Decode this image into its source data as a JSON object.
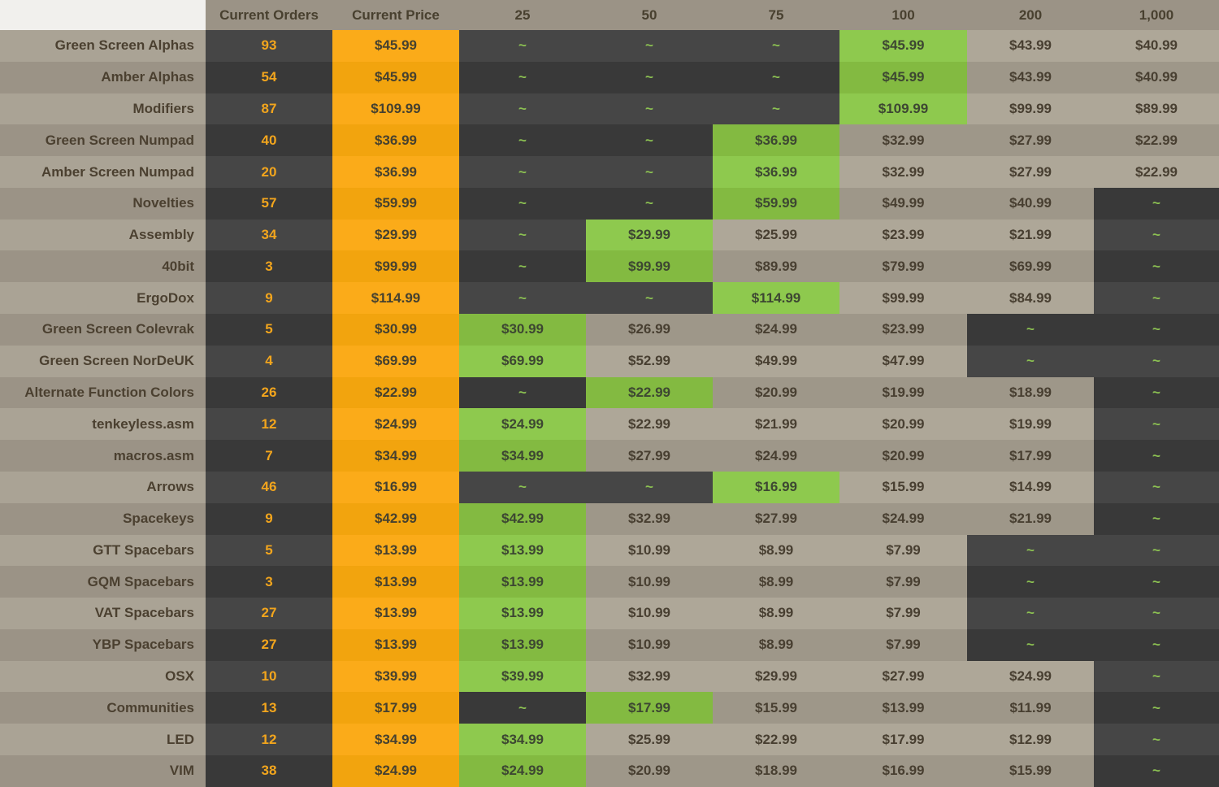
{
  "chart_data": {
    "type": "table",
    "corner_label": "",
    "columns": [
      "Current Orders",
      "Current Price",
      "25",
      "50",
      "75",
      "100",
      "200",
      "1,000"
    ],
    "tier_columns": [
      "25",
      "50",
      "75",
      "100",
      "200",
      "1,000"
    ],
    "unavailable_marker": "~",
    "rows": [
      {
        "label": "Green Screen Alphas",
        "orders": "93",
        "price": "$45.99",
        "tiers": [
          null,
          null,
          null,
          "$45.99",
          "$43.99",
          "$40.99"
        ],
        "highlight_tier": 3
      },
      {
        "label": "Amber Alphas",
        "orders": "54",
        "price": "$45.99",
        "tiers": [
          null,
          null,
          null,
          "$45.99",
          "$43.99",
          "$40.99"
        ],
        "highlight_tier": 3
      },
      {
        "label": "Modifiers",
        "orders": "87",
        "price": "$109.99",
        "tiers": [
          null,
          null,
          null,
          "$109.99",
          "$99.99",
          "$89.99"
        ],
        "highlight_tier": 3
      },
      {
        "label": "Green Screen Numpad",
        "orders": "40",
        "price": "$36.99",
        "tiers": [
          null,
          null,
          "$36.99",
          "$32.99",
          "$27.99",
          "$22.99"
        ],
        "highlight_tier": 2
      },
      {
        "label": "Amber Screen Numpad",
        "orders": "20",
        "price": "$36.99",
        "tiers": [
          null,
          null,
          "$36.99",
          "$32.99",
          "$27.99",
          "$22.99"
        ],
        "highlight_tier": 2
      },
      {
        "label": "Novelties",
        "orders": "57",
        "price": "$59.99",
        "tiers": [
          null,
          null,
          "$59.99",
          "$49.99",
          "$40.99",
          null
        ],
        "highlight_tier": 2
      },
      {
        "label": "Assembly",
        "orders": "34",
        "price": "$29.99",
        "tiers": [
          null,
          "$29.99",
          "$25.99",
          "$23.99",
          "$21.99",
          null
        ],
        "highlight_tier": 1
      },
      {
        "label": "40bit",
        "orders": "3",
        "price": "$99.99",
        "tiers": [
          null,
          "$99.99",
          "$89.99",
          "$79.99",
          "$69.99",
          null
        ],
        "highlight_tier": 1
      },
      {
        "label": "ErgoDox",
        "orders": "9",
        "price": "$114.99",
        "tiers": [
          null,
          null,
          "$114.99",
          "$99.99",
          "$84.99",
          null
        ],
        "highlight_tier": 2
      },
      {
        "label": "Green Screen Colevrak",
        "orders": "5",
        "price": "$30.99",
        "tiers": [
          "$30.99",
          "$26.99",
          "$24.99",
          "$23.99",
          null,
          null
        ],
        "highlight_tier": 0
      },
      {
        "label": "Green Screen NorDeUK",
        "orders": "4",
        "price": "$69.99",
        "tiers": [
          "$69.99",
          "$52.99",
          "$49.99",
          "$47.99",
          null,
          null
        ],
        "highlight_tier": 0
      },
      {
        "label": "Alternate Function Colors",
        "orders": "26",
        "price": "$22.99",
        "tiers": [
          null,
          "$22.99",
          "$20.99",
          "$19.99",
          "$18.99",
          null
        ],
        "highlight_tier": 1
      },
      {
        "label": "tenkeyless.asm",
        "orders": "12",
        "price": "$24.99",
        "tiers": [
          "$24.99",
          "$22.99",
          "$21.99",
          "$20.99",
          "$19.99",
          null
        ],
        "highlight_tier": 0
      },
      {
        "label": "macros.asm",
        "orders": "7",
        "price": "$34.99",
        "tiers": [
          "$34.99",
          "$27.99",
          "$24.99",
          "$20.99",
          "$17.99",
          null
        ],
        "highlight_tier": 0
      },
      {
        "label": "Arrows",
        "orders": "46",
        "price": "$16.99",
        "tiers": [
          null,
          null,
          "$16.99",
          "$15.99",
          "$14.99",
          null
        ],
        "highlight_tier": 2
      },
      {
        "label": "Spacekeys",
        "orders": "9",
        "price": "$42.99",
        "tiers": [
          "$42.99",
          "$32.99",
          "$27.99",
          "$24.99",
          "$21.99",
          null
        ],
        "highlight_tier": 0
      },
      {
        "label": "GTT Spacebars",
        "orders": "5",
        "price": "$13.99",
        "tiers": [
          "$13.99",
          "$10.99",
          "$8.99",
          "$7.99",
          null,
          null
        ],
        "highlight_tier": 0
      },
      {
        "label": "GQM Spacebars",
        "orders": "3",
        "price": "$13.99",
        "tiers": [
          "$13.99",
          "$10.99",
          "$8.99",
          "$7.99",
          null,
          null
        ],
        "highlight_tier": 0
      },
      {
        "label": "VAT Spacebars",
        "orders": "27",
        "price": "$13.99",
        "tiers": [
          "$13.99",
          "$10.99",
          "$8.99",
          "$7.99",
          null,
          null
        ],
        "highlight_tier": 0
      },
      {
        "label": "YBP Spacebars",
        "orders": "27",
        "price": "$13.99",
        "tiers": [
          "$13.99",
          "$10.99",
          "$8.99",
          "$7.99",
          null,
          null
        ],
        "highlight_tier": 0
      },
      {
        "label": "OSX",
        "orders": "10",
        "price": "$39.99",
        "tiers": [
          "$39.99",
          "$32.99",
          "$29.99",
          "$27.99",
          "$24.99",
          null
        ],
        "highlight_tier": 0
      },
      {
        "label": "Communities",
        "orders": "13",
        "price": "$17.99",
        "tiers": [
          null,
          "$17.99",
          "$15.99",
          "$13.99",
          "$11.99",
          null
        ],
        "highlight_tier": 1
      },
      {
        "label": "LED",
        "orders": "12",
        "price": "$34.99",
        "tiers": [
          "$34.99",
          "$25.99",
          "$22.99",
          "$17.99",
          "$12.99",
          null
        ],
        "highlight_tier": 0
      },
      {
        "label": "VIM",
        "orders": "38",
        "price": "$24.99",
        "tiers": [
          "$24.99",
          "$20.99",
          "$18.99",
          "$16.99",
          "$15.99",
          null
        ],
        "highlight_tier": 0
      }
    ]
  },
  "colors": {
    "corner_bg": "#f1f0ed",
    "header_bg": "#9b9386",
    "header_text": "#48402f",
    "label_bg_odd": "#aaa395",
    "label_bg_even": "#9b9386",
    "label_text": "#4b4030",
    "dark_bg_odd": "#464646",
    "dark_bg_even": "#393939",
    "orders_text": "#f2a51d",
    "amber_bg_odd": "#fbab19",
    "amber_bg_even": "#f2a40e",
    "amber_text": "#46412f",
    "tan_bg_odd": "#aea798",
    "tan_bg_even": "#9e9789",
    "tan_text": "#483f31",
    "green_bg_odd": "#8ec94e",
    "green_bg_even": "#83ba41",
    "green_text": "#3d4732",
    "tilde_text": "#8cc152"
  }
}
